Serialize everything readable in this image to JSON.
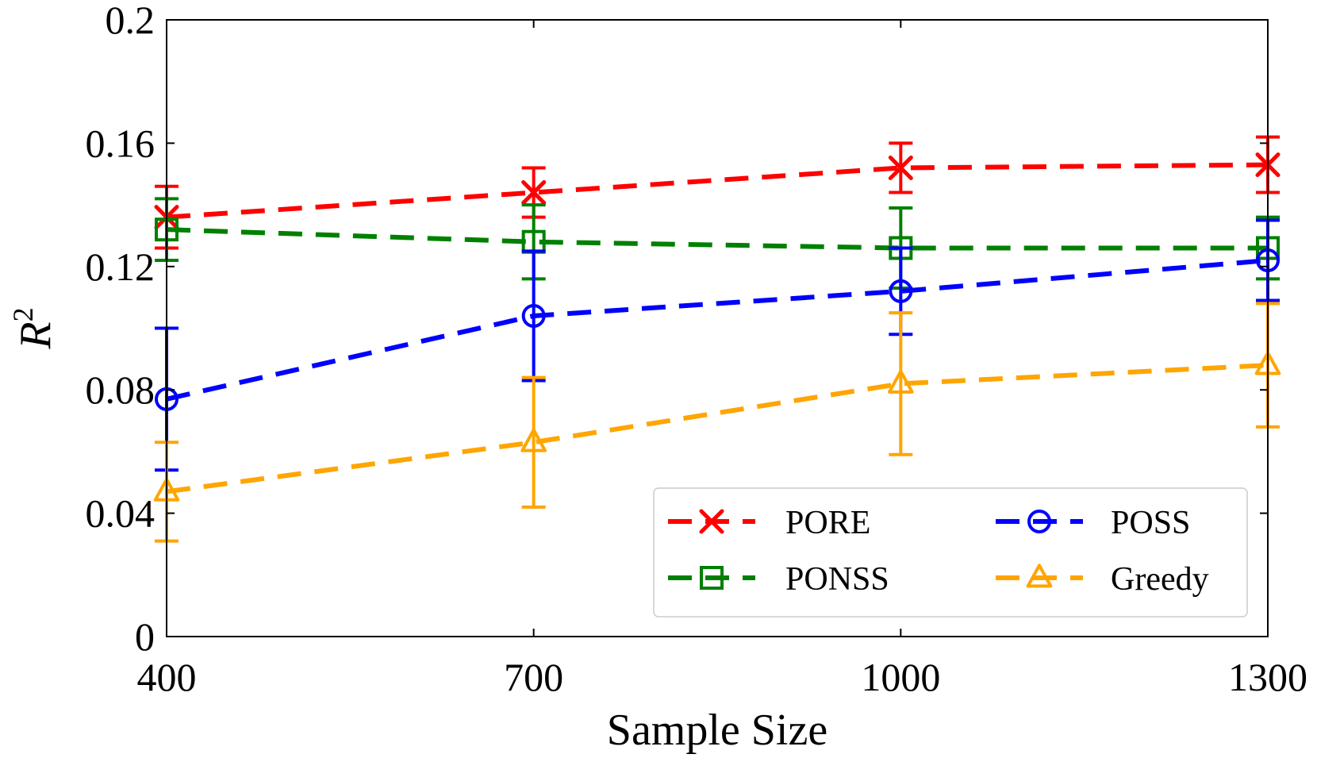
{
  "chart_data": {
    "type": "line",
    "title": "",
    "xlabel": "Sample Size",
    "ylabel": {
      "base": "R",
      "sup": "2"
    },
    "x": [
      400,
      700,
      1000,
      1300
    ],
    "xticks": [
      "400",
      "700",
      "1000",
      "1300"
    ],
    "yticks": [
      {
        "value": 0,
        "label": "0"
      },
      {
        "value": 0.04,
        "label": "0.04"
      },
      {
        "value": 0.08,
        "label": "0.08"
      },
      {
        "value": 0.12,
        "label": "0.12"
      },
      {
        "value": 0.16,
        "label": "0.16"
      },
      {
        "value": 0.2,
        "label": "0.2"
      }
    ],
    "xlim": [
      400,
      1300
    ],
    "ylim": [
      0,
      0.2
    ],
    "grid": false,
    "legend": {
      "position": "lower-right",
      "columns": 2
    },
    "series": [
      {
        "name": "PORE",
        "color": "#ff0000",
        "marker": "x",
        "values": [
          0.136,
          0.144,
          0.152,
          0.153
        ],
        "errors": [
          0.01,
          0.008,
          0.008,
          0.009
        ]
      },
      {
        "name": "PONSS",
        "color": "#008000",
        "marker": "square",
        "values": [
          0.132,
          0.128,
          0.126,
          0.126
        ],
        "errors": [
          0.01,
          0.012,
          0.013,
          0.01
        ]
      },
      {
        "name": "POSS",
        "color": "#0000ff",
        "marker": "circle",
        "values": [
          0.077,
          0.104,
          0.112,
          0.122
        ],
        "errors": [
          0.023,
          0.021,
          0.014,
          0.013
        ]
      },
      {
        "name": "Greedy",
        "color": "#ffa500",
        "marker": "triangle",
        "values": [
          0.047,
          0.063,
          0.082,
          0.088
        ],
        "errors": [
          0.016,
          0.021,
          0.023,
          0.02
        ]
      }
    ]
  }
}
